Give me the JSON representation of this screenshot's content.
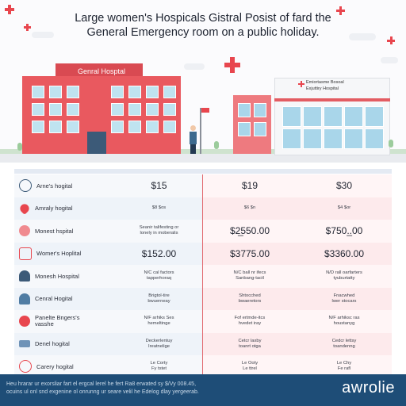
{
  "header": {
    "title_line1": "Large women's Hospicals Gistral Posist of fard the",
    "title_line2": "General Emergency room on a public holiday."
  },
  "illustration": {
    "building1_sign": "Genral Hosptal",
    "building2_sign_line1": "Emiortasme Bosoal",
    "building2_sign_line2": "Exjuttiry Hospital",
    "accent_color": "#e8464e"
  },
  "table": {
    "rows": [
      {
        "icon": "clock-icon",
        "name": "Arne's hogital",
        "col1": "$15",
        "col2": "$19",
        "col3": "$30",
        "type": "value"
      },
      {
        "icon": "heart-icon",
        "name": "Amraly hogital",
        "col1": "$8 $os",
        "col2": "$6 $n",
        "col3": "$4 $or",
        "type": "small"
      },
      {
        "icon": "heart-pulse-icon",
        "name": "Monest hspital",
        "col1": "Seanir talifesting or|lonely in moberalis",
        "col2": "$2̲550.00",
        "col3": "$750.̲.00",
        "type": "mixed"
      },
      {
        "icon": "heartbeat-icon",
        "name": "Womer's Hoplital",
        "col1": "$152.00",
        "col2": "$3775.00",
        "col3": "$3360.00",
        "type": "value"
      },
      {
        "icon": "doctor-icon",
        "name": "Monesh Hospital",
        "col1": "N/C cal factors|tapperhoraq",
        "col2": "N/C ball nr ifecs|Sanbang-tactl",
        "col3": "N/D rall oarfarters|tyuburtatty",
        "type": "small"
      },
      {
        "icon": "people-icon",
        "name": "Cenral Hogital",
        "col1": "Brigtol-tire|bwuerneay",
        "col2": "Shtocched|bwaeretors",
        "col3": "Fnacwhed|lwer stocars",
        "type": "small"
      },
      {
        "icon": "first-aid-icon",
        "name": "Panelte Bngers's|vasshe",
        "col1": "N/F arhiks Ses|hemeltinge",
        "col2": "Fof ertmde-itcs|hvedet iray",
        "col3": "N/F arhiksc ras|houstanyg",
        "type": "small"
      },
      {
        "icon": "bed-icon",
        "name": "Denel hogital",
        "col1": "Deckerlentuy|Ireatnelige",
        "col2": "Cetcr laxby|toanrt otga",
        "col3": "Cedcr lettsy|toandenng",
        "type": "small"
      },
      {
        "icon": "heart-outline-icon",
        "name": "Carery hogital",
        "col1": "Le Corty|Fy tstet",
        "col2": "Le Ooty|Le ttrel",
        "col3": "Le Chy|Fe rafl",
        "type": "small"
      }
    ]
  },
  "footer": {
    "line1": "Heu hrarar ur exorsliar fart el ergcal lerel he fert Ra8 erwated sy $/Vy 008.45,",
    "line2": "ocuins ul onl snd exgenine ol onrunng ur seare velil he Edelog dlay yergeerab.",
    "brand": "awrolie"
  }
}
